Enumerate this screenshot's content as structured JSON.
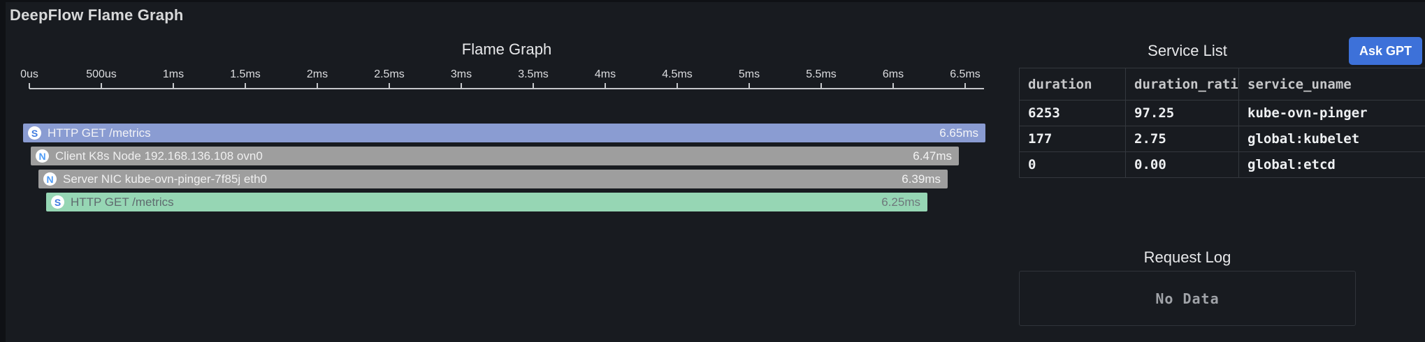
{
  "page": {
    "title": "DeepFlow Flame Graph"
  },
  "colors": {
    "background": "#181b20",
    "accent_blue": "#3d71d9",
    "axis": "#c6c8cb",
    "table_border": "#34383e"
  },
  "flame_panel": {
    "title": "Flame Graph",
    "axis": {
      "labels": [
        "0us",
        "500us",
        "1ms",
        "1.5ms",
        "2ms",
        "2.5ms",
        "3ms",
        "3.5ms",
        "4ms",
        "4.5ms",
        "5ms",
        "5.5ms",
        "6ms",
        "6.5ms"
      ],
      "tick_values_ms": [
        0,
        0.5,
        1,
        1.5,
        2,
        2.5,
        3,
        3.5,
        4,
        4.5,
        5,
        5.5,
        6,
        6.5
      ]
    },
    "bars": [
      {
        "icon_letter": "S",
        "icon_color": "#3f7be0",
        "label": "HTTP GET /metrics",
        "duration_ms": 6.65,
        "duration_label": "6.65ms",
        "color": "#8a9cd2",
        "text_color": "#f1f2f6",
        "duration_color": "#f4f5f8"
      },
      {
        "icon_letter": "N",
        "icon_color": "#4f9cf6",
        "label": "Client K8s Node 192.168.136.108 ovn0",
        "duration_ms": 6.47,
        "duration_label": "6.47ms",
        "color": "#9e9e9e",
        "text_color": "#efefef",
        "duration_color": "#f3f3f3"
      },
      {
        "icon_letter": "N",
        "icon_color": "#4f9cf6",
        "label": "Server NIC kube-ovn-pinger-7f85j eth0",
        "duration_ms": 6.39,
        "duration_label": "6.39ms",
        "color": "#9e9e9e",
        "text_color": "#efefef",
        "duration_color": "#f3f3f3"
      },
      {
        "icon_letter": "S",
        "icon_color": "#3f7be0",
        "label": "HTTP GET /metrics",
        "duration_ms": 6.25,
        "duration_label": "6.25ms",
        "color": "#96d6b4",
        "text_color": "#5f6a6e",
        "duration_color": "#6e777b"
      }
    ]
  },
  "service_list": {
    "title": "Service List",
    "ask_gpt_label": "Ask GPT",
    "ask_gpt_color": "#3d71d9",
    "table": {
      "columns": [
        "duration",
        "duration_ratio",
        "service_uname"
      ],
      "rows": [
        [
          "6253",
          "97.25",
          "kube-ovn-pinger"
        ],
        [
          "177",
          "2.75",
          "global:kubelet"
        ],
        [
          "0",
          "0.00",
          "global:etcd"
        ]
      ]
    }
  },
  "request_log": {
    "title": "Request Log",
    "empty_text": "No Data"
  }
}
